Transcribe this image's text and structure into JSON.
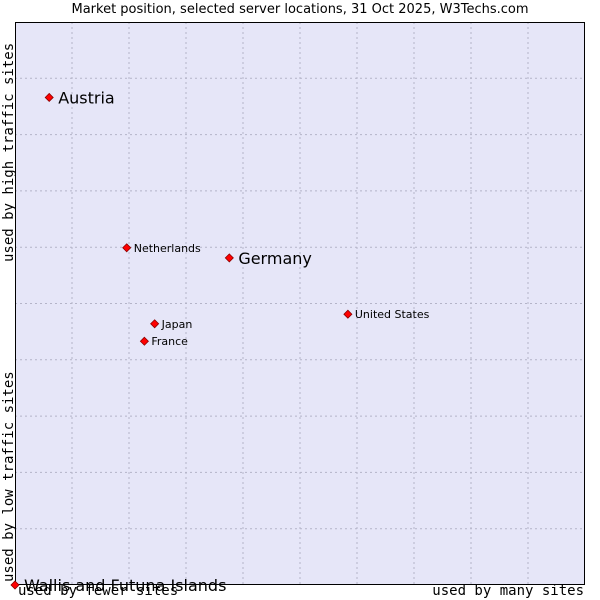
{
  "chart_data": {
    "type": "scatter",
    "title": "Market position, selected server locations, 31 Oct 2025, W3Techs.com",
    "xlabel_left": "used by fewer sites",
    "xlabel_right": "used by many sites",
    "ylabel_top": "used by high traffic sites",
    "ylabel_bottom": "used by low traffic sites",
    "xlim": [
      0,
      100
    ],
    "ylim": [
      0,
      100
    ],
    "grid": true,
    "points": [
      {
        "label": "Austria",
        "x": 6.0,
        "y": 86.6,
        "emphasis": true
      },
      {
        "label": "Netherlands",
        "x": 19.6,
        "y": 59.9,
        "emphasis": false
      },
      {
        "label": "Germany",
        "x": 37.6,
        "y": 58.1,
        "emphasis": true
      },
      {
        "label": "United States",
        "x": 58.4,
        "y": 48.1,
        "emphasis": false
      },
      {
        "label": "Japan",
        "x": 24.5,
        "y": 46.4,
        "emphasis": false
      },
      {
        "label": "France",
        "x": 22.7,
        "y": 43.3,
        "emphasis": false
      },
      {
        "label": "Wallis and Futuna Islands",
        "x": 0.0,
        "y": 0.0,
        "emphasis": true
      }
    ]
  },
  "colors": {
    "plot_bg": "#e6e6f8",
    "grid": "#b4b4c8",
    "marker": "#ff0000"
  }
}
